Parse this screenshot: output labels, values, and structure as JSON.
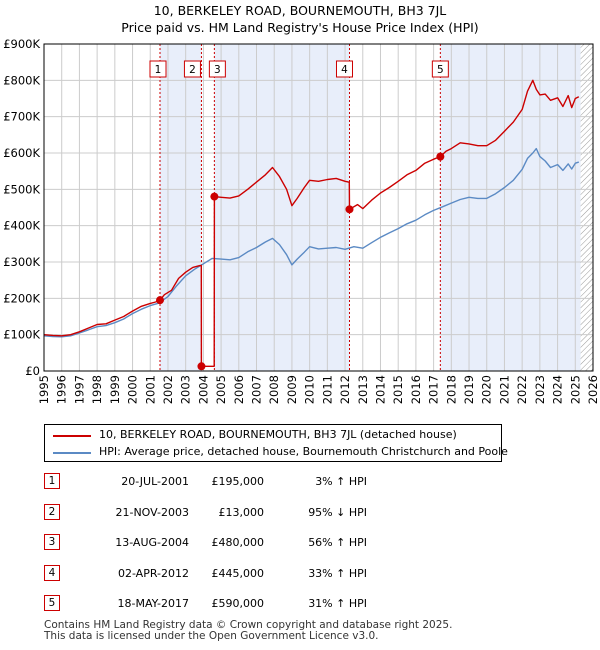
{
  "chart_data": {
    "type": "line",
    "title": "10, BERKELEY ROAD, BOURNEMOUTH, BH3 7JL",
    "subtitle": "Price paid vs. HM Land Registry's House Price Index (HPI)",
    "xlabel": "",
    "ylabel": "",
    "xlim": [
      1995,
      2026
    ],
    "ylim": [
      0,
      900000
    ],
    "x_ticks": [
      "1995",
      "1996",
      "1997",
      "1998",
      "1999",
      "2000",
      "2001",
      "2002",
      "2003",
      "2004",
      "2005",
      "2006",
      "2007",
      "2008",
      "2009",
      "2010",
      "2011",
      "2012",
      "2013",
      "2014",
      "2015",
      "2016",
      "2017",
      "2018",
      "2019",
      "2020",
      "2021",
      "2022",
      "2023",
      "2024",
      "2025",
      "2026"
    ],
    "y_ticks": [
      {
        "value": 0,
        "label": "£0"
      },
      {
        "value": 100000,
        "label": "£100K"
      },
      {
        "value": 200000,
        "label": "£200K"
      },
      {
        "value": 300000,
        "label": "£300K"
      },
      {
        "value": 400000,
        "label": "£400K"
      },
      {
        "value": 500000,
        "label": "£500K"
      },
      {
        "value": 600000,
        "label": "£600K"
      },
      {
        "value": 700000,
        "label": "£700K"
      },
      {
        "value": 800000,
        "label": "£800K"
      },
      {
        "value": 900000,
        "label": "£900K"
      }
    ],
    "grid": true,
    "shaded_periods": [
      [
        2001.55,
        2003.89
      ],
      [
        2004.62,
        2012.25
      ],
      [
        2017.38,
        2025.3
      ]
    ],
    "future_hatch_from": 2025.3,
    "series": [
      {
        "name": "10, BERKELEY ROAD, BOURNEMOUTH, BH3 7JL (detached house)",
        "color": "#cc0000",
        "x": [
          1995.0,
          1995.5,
          1996.0,
          1996.5,
          1997.0,
          1997.5,
          1998.0,
          1998.5,
          1999.0,
          1999.5,
          2000.0,
          2000.5,
          2001.0,
          2001.3,
          2001.55,
          2001.8,
          2002.2,
          2002.6,
          2003.0,
          2003.4,
          2003.8,
          2003.88,
          2003.89,
          2003.95,
          2004.5,
          2004.6,
          2004.61,
          2004.62,
          2005.0,
          2005.5,
          2006.0,
          2006.5,
          2007.0,
          2007.5,
          2007.9,
          2008.3,
          2008.7,
          2009.0,
          2009.3,
          2009.7,
          2010.0,
          2010.5,
          2011.0,
          2011.5,
          2012.0,
          2012.2,
          2012.24,
          2012.25,
          2012.7,
          2013.0,
          2013.5,
          2014.0,
          2014.5,
          2015.0,
          2015.5,
          2016.0,
          2016.5,
          2017.0,
          2017.38,
          2017.7,
          2018.0,
          2018.5,
          2019.0,
          2019.5,
          2020.0,
          2020.5,
          2021.0,
          2021.5,
          2022.0,
          2022.3,
          2022.6,
          2022.8,
          2023.0,
          2023.3,
          2023.6,
          2024.0,
          2024.3,
          2024.6,
          2024.8,
          2025.0,
          2025.2
        ],
        "y": [
          100000,
          98000,
          97000,
          100000,
          108000,
          118000,
          128000,
          130000,
          140000,
          150000,
          165000,
          178000,
          186000,
          190000,
          195000,
          210000,
          222000,
          255000,
          272000,
          285000,
          290000,
          290000,
          13000,
          13000,
          13000,
          13000,
          13000,
          480000,
          478000,
          476000,
          482000,
          500000,
          520000,
          540000,
          560000,
          535000,
          500000,
          455000,
          475000,
          505000,
          525000,
          522000,
          527000,
          530000,
          522000,
          520000,
          520000,
          445000,
          458000,
          447000,
          470000,
          490000,
          505000,
          522000,
          540000,
          552000,
          572000,
          583000,
          590000,
          605000,
          612000,
          628000,
          625000,
          620000,
          620000,
          635000,
          660000,
          685000,
          720000,
          770000,
          800000,
          775000,
          760000,
          762000,
          745000,
          752000,
          728000,
          758000,
          725000,
          750000,
          755000
        ]
      },
      {
        "name": "HPI: Average price, detached house, Bournemouth Christchurch and Poole",
        "color": "#5b8ac4",
        "x": [
          1995.0,
          1995.5,
          1996.0,
          1996.5,
          1997.0,
          1997.5,
          1998.0,
          1998.5,
          1999.0,
          1999.5,
          2000.0,
          2000.5,
          2001.0,
          2001.5,
          2002.0,
          2002.5,
          2003.0,
          2003.5,
          2004.0,
          2004.5,
          2005.0,
          2005.5,
          2006.0,
          2006.5,
          2007.0,
          2007.5,
          2007.9,
          2008.3,
          2008.7,
          2009.0,
          2009.3,
          2009.7,
          2010.0,
          2010.5,
          2011.0,
          2011.5,
          2012.0,
          2012.5,
          2013.0,
          2013.5,
          2014.0,
          2014.5,
          2015.0,
          2015.5,
          2016.0,
          2016.5,
          2017.0,
          2017.5,
          2018.0,
          2018.5,
          2019.0,
          2019.5,
          2020.0,
          2020.5,
          2021.0,
          2021.5,
          2022.0,
          2022.3,
          2022.6,
          2022.8,
          2023.0,
          2023.3,
          2023.6,
          2024.0,
          2024.3,
          2024.6,
          2024.8,
          2025.0,
          2025.2
        ],
        "y": [
          97000,
          95000,
          94000,
          97000,
          105000,
          113000,
          122000,
          125000,
          133000,
          143000,
          158000,
          170000,
          180000,
          187000,
          205000,
          235000,
          262000,
          280000,
          295000,
          310000,
          308000,
          306000,
          312000,
          328000,
          340000,
          355000,
          365000,
          348000,
          320000,
          292000,
          308000,
          327000,
          342000,
          336000,
          338000,
          340000,
          335000,
          342000,
          338000,
          353000,
          368000,
          380000,
          392000,
          405000,
          415000,
          430000,
          442000,
          452000,
          462000,
          472000,
          478000,
          475000,
          475000,
          488000,
          505000,
          525000,
          555000,
          585000,
          600000,
          612000,
          590000,
          578000,
          560000,
          568000,
          552000,
          570000,
          556000,
          572000,
          575000
        ]
      }
    ],
    "sales": [
      {
        "label": "1",
        "x": 2001.55,
        "y": 195000
      },
      {
        "label": "2",
        "x": 2003.89,
        "y": 13000
      },
      {
        "label": "3",
        "x": 2004.62,
        "y": 480000
      },
      {
        "label": "4",
        "x": 2012.25,
        "y": 445000
      },
      {
        "label": "5",
        "x": 2017.38,
        "y": 590000
      }
    ]
  },
  "legend": {
    "property": "10, BERKELEY ROAD, BOURNEMOUTH, BH3 7JL (detached house)",
    "hpi": "HPI: Average price, detached house, Bournemouth Christchurch and Poole"
  },
  "transactions": [
    {
      "num": "1",
      "date": "20-JUL-2001",
      "price": "£195,000",
      "hpi": "3% ↑ HPI"
    },
    {
      "num": "2",
      "date": "21-NOV-2003",
      "price": "£13,000",
      "hpi": "95% ↓ HPI"
    },
    {
      "num": "3",
      "date": "13-AUG-2004",
      "price": "£480,000",
      "hpi": "56% ↑ HPI"
    },
    {
      "num": "4",
      "date": "02-APR-2012",
      "price": "£445,000",
      "hpi": "33% ↑ HPI"
    },
    {
      "num": "5",
      "date": "18-MAY-2017",
      "price": "£590,000",
      "hpi": "31% ↑ HPI"
    }
  ],
  "footer": {
    "line1": "Contains HM Land Registry data © Crown copyright and database right 2025.",
    "line2": "This data is licensed under the Open Government Licence v3.0."
  },
  "colors": {
    "property_line": "#cc0000",
    "hpi_line": "#5b8ac4",
    "shade": "#e8eefa",
    "grid": "#cccccc"
  }
}
